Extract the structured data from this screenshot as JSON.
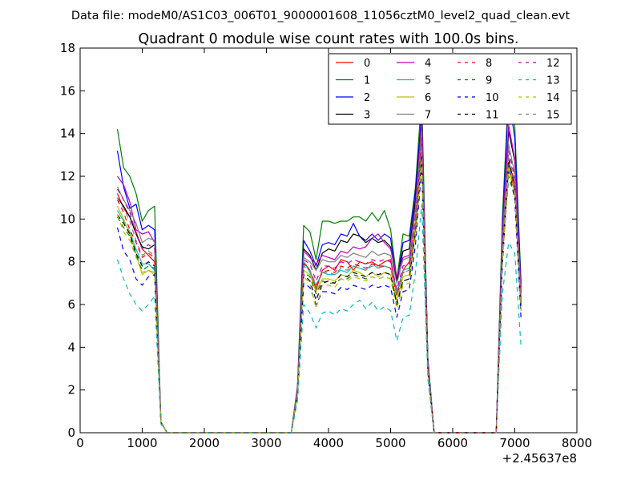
{
  "figure": {
    "suptitle": "Data file: modeM0/AS1C03_006T01_9000001608_11056cztM0_level2_quad_clean.evt"
  },
  "chart_data": {
    "type": "line",
    "title": "Quadrant 0 module wise count rates with 100.0s bins.",
    "xlabel": "",
    "ylabel": "",
    "xlim": [
      0,
      8000
    ],
    "ylim": [
      0,
      18
    ],
    "x_offset_label": "+2.45637e8",
    "x_ticks": [
      0,
      1000,
      2000,
      3000,
      4000,
      5000,
      6000,
      7000,
      8000
    ],
    "y_ticks": [
      0,
      2,
      4,
      6,
      8,
      10,
      12,
      14,
      16,
      18
    ],
    "x_tick_labels": [
      "0",
      "1000",
      "2000",
      "3000",
      "4000",
      "5000",
      "6000",
      "7000",
      "8000"
    ],
    "y_tick_labels": [
      "0",
      "2",
      "4",
      "6",
      "8",
      "10",
      "12",
      "14",
      "16",
      "18"
    ],
    "grid": false,
    "legend_position": "top-right",
    "legend_columns": 4,
    "x": [
      600,
      700,
      800,
      900,
      1000,
      1100,
      1200,
      1300,
      1400,
      1500,
      3400,
      3500,
      3600,
      3700,
      3800,
      3900,
      4000,
      4100,
      4200,
      4300,
      4400,
      4500,
      4600,
      4700,
      4800,
      4900,
      5000,
      5100,
      5200,
      5300,
      5400,
      5500,
      5600,
      5700,
      6700,
      6800,
      6900,
      7000,
      7100
    ],
    "series": [
      {
        "name": "0",
        "color": "#ff0000",
        "dash": "solid",
        "values": [
          11.2,
          10.5,
          10.1,
          9.4,
          8.6,
          8.3,
          8.0,
          0.5,
          0.0,
          0.0,
          0.0,
          2.0,
          8.0,
          7.6,
          6.7,
          7.6,
          7.8,
          7.6,
          8.1,
          8.0,
          7.6,
          8.0,
          7.9,
          8.0,
          7.8,
          8.0,
          8.1,
          6.5,
          7.6,
          8.0,
          10.5,
          13.8,
          3.2,
          0.0,
          0.0,
          8.6,
          12.4,
          11.4,
          6.2
        ]
      },
      {
        "name": "1",
        "color": "#008000",
        "dash": "solid",
        "values": [
          14.2,
          12.4,
          12.0,
          11.2,
          9.9,
          10.4,
          10.6,
          0.5,
          0.0,
          0.0,
          0.0,
          2.2,
          9.7,
          9.4,
          8.1,
          9.9,
          9.9,
          9.8,
          9.9,
          9.9,
          10.1,
          10.1,
          9.9,
          10.3,
          9.9,
          10.4,
          9.5,
          7.2,
          9.3,
          9.2,
          11.5,
          15.8,
          3.5,
          0.0,
          0.0,
          10.1,
          16.1,
          14.3,
          7.0
        ]
      },
      {
        "name": "2",
        "color": "#0000ff",
        "dash": "solid",
        "values": [
          13.2,
          11.5,
          10.5,
          10.7,
          9.5,
          9.7,
          9.5,
          0.5,
          0.0,
          0.0,
          0.0,
          2.1,
          9.0,
          8.5,
          7.8,
          8.8,
          8.9,
          8.8,
          9.3,
          9.2,
          9.8,
          9.2,
          9.0,
          9.3,
          9.0,
          9.3,
          9.1,
          7.0,
          8.9,
          9.0,
          11.3,
          15.0,
          3.4,
          0.0,
          0.0,
          9.6,
          15.7,
          13.8,
          6.8
        ]
      },
      {
        "name": "3",
        "color": "#000000",
        "dash": "solid",
        "values": [
          11.0,
          10.6,
          10.1,
          9.3,
          8.7,
          8.6,
          8.8,
          0.5,
          0.0,
          0.0,
          0.0,
          2.0,
          8.6,
          8.3,
          7.6,
          8.4,
          8.6,
          8.5,
          9.0,
          8.9,
          9.3,
          9.2,
          8.9,
          9.1,
          8.9,
          9.0,
          8.7,
          7.1,
          8.5,
          8.6,
          10.9,
          14.5,
          3.3,
          0.0,
          0.0,
          9.3,
          14.1,
          12.7,
          6.6
        ]
      },
      {
        "name": "4",
        "color": "#bf00bf",
        "dash": "solid",
        "values": [
          12.0,
          11.6,
          10.8,
          9.5,
          9.3,
          9.4,
          8.9,
          0.5,
          0.0,
          0.0,
          0.0,
          2.1,
          8.5,
          8.2,
          7.9,
          8.3,
          8.2,
          8.1,
          8.5,
          8.4,
          8.7,
          8.6,
          8.7,
          9.1,
          9.3,
          8.9,
          8.6,
          7.3,
          8.2,
          8.3,
          10.6,
          14.6,
          3.3,
          0.0,
          0.0,
          9.3,
          14.4,
          12.8,
          6.5
        ]
      },
      {
        "name": "5",
        "color": "#00bfbf",
        "dash": "solid",
        "values": [
          10.4,
          9.9,
          9.4,
          8.6,
          7.9,
          7.9,
          7.6,
          0.5,
          0.0,
          0.0,
          0.0,
          1.9,
          8.0,
          7.5,
          6.9,
          7.5,
          7.4,
          7.4,
          7.6,
          7.5,
          7.8,
          7.7,
          7.6,
          7.9,
          7.7,
          7.8,
          7.7,
          6.6,
          7.6,
          7.7,
          9.8,
          13.5,
          3.1,
          0.0,
          0.0,
          8.6,
          12.6,
          11.6,
          5.9
        ]
      },
      {
        "name": "6",
        "color": "#bfbf00",
        "dash": "solid",
        "values": [
          10.6,
          10.0,
          9.3,
          8.4,
          7.4,
          7.6,
          7.5,
          0.5,
          0.0,
          0.0,
          0.0,
          1.8,
          7.6,
          7.4,
          6.6,
          7.2,
          7.2,
          7.1,
          7.4,
          7.3,
          7.6,
          7.5,
          7.3,
          7.5,
          7.3,
          7.5,
          7.4,
          6.2,
          7.3,
          7.4,
          9.6,
          13.2,
          3.0,
          0.0,
          0.0,
          8.3,
          12.3,
          11.2,
          5.7
        ]
      },
      {
        "name": "7",
        "color": "#808080",
        "dash": "solid",
        "values": [
          11.5,
          10.9,
          10.4,
          9.8,
          8.9,
          9.1,
          9.0,
          0.5,
          0.0,
          0.0,
          0.0,
          2.0,
          8.2,
          8.0,
          7.6,
          8.1,
          8.0,
          8.0,
          8.3,
          8.2,
          8.4,
          8.3,
          8.2,
          8.5,
          8.3,
          8.4,
          8.3,
          7.0,
          8.1,
          8.2,
          10.4,
          14.1,
          3.2,
          0.0,
          0.0,
          9.0,
          13.5,
          12.1,
          6.3
        ]
      },
      {
        "name": "8",
        "color": "#ff0000",
        "dash": "dashed",
        "values": [
          10.9,
          10.3,
          9.5,
          8.9,
          8.2,
          8.4,
          8.2,
          0.5,
          0.0,
          0.0,
          0.0,
          1.9,
          7.9,
          7.6,
          6.9,
          7.5,
          7.6,
          7.5,
          7.8,
          7.7,
          7.9,
          7.8,
          7.7,
          7.9,
          7.8,
          7.8,
          7.7,
          6.4,
          7.5,
          7.6,
          9.9,
          13.6,
          3.1,
          0.0,
          0.0,
          8.6,
          12.7,
          11.7,
          6.0
        ]
      },
      {
        "name": "9",
        "color": "#008000",
        "dash": "dashed",
        "values": [
          10.1,
          9.6,
          9.2,
          8.3,
          7.6,
          7.8,
          7.7,
          0.5,
          0.0,
          0.0,
          0.0,
          1.8,
          7.5,
          7.3,
          6.5,
          7.1,
          7.0,
          7.0,
          7.2,
          7.2,
          7.4,
          7.3,
          7.2,
          7.3,
          7.2,
          7.3,
          7.2,
          6.1,
          7.1,
          7.2,
          9.4,
          12.8,
          3.0,
          0.0,
          0.0,
          8.1,
          12.0,
          11.0,
          5.6
        ]
      },
      {
        "name": "10",
        "color": "#0000ff",
        "dash": "dashed",
        "values": [
          9.6,
          8.5,
          8.1,
          7.2,
          6.9,
          7.3,
          7.4,
          0.5,
          0.0,
          0.0,
          0.0,
          1.7,
          7.0,
          6.8,
          6.0,
          6.6,
          6.6,
          6.5,
          6.8,
          6.7,
          6.9,
          6.8,
          6.7,
          6.9,
          6.8,
          6.9,
          6.8,
          5.4,
          6.6,
          6.7,
          8.8,
          12.4,
          2.8,
          0.0,
          0.0,
          7.8,
          12.5,
          10.9,
          5.3
        ]
      },
      {
        "name": "11",
        "color": "#000000",
        "dash": "dashed",
        "values": [
          10.2,
          9.8,
          9.3,
          8.4,
          7.8,
          8.0,
          7.8,
          0.5,
          0.0,
          0.0,
          0.0,
          1.8,
          7.4,
          7.1,
          6.2,
          7.0,
          7.1,
          7.0,
          7.4,
          7.3,
          7.5,
          7.4,
          7.3,
          7.5,
          7.4,
          7.5,
          7.4,
          6.0,
          7.1,
          7.2,
          9.3,
          12.9,
          3.0,
          0.0,
          0.0,
          8.2,
          12.8,
          11.5,
          5.8
        ]
      },
      {
        "name": "12",
        "color": "#bf00bf",
        "dash": "dashed",
        "values": [
          11.4,
          10.9,
          10.3,
          9.3,
          8.6,
          8.8,
          8.6,
          0.5,
          0.0,
          0.0,
          0.0,
          1.9,
          8.1,
          7.9,
          7.1,
          7.8,
          7.8,
          7.7,
          8.0,
          7.9,
          8.1,
          8.0,
          7.9,
          8.1,
          8.0,
          8.1,
          8.0,
          6.7,
          7.8,
          7.9,
          10.1,
          13.8,
          3.1,
          0.0,
          0.0,
          8.9,
          13.2,
          12.0,
          6.1
        ]
      },
      {
        "name": "13",
        "color": "#00bfbf",
        "dash": "dashed",
        "values": [
          8.1,
          7.2,
          6.5,
          6.0,
          5.7,
          6.0,
          6.4,
          0.4,
          0.0,
          0.0,
          0.0,
          1.5,
          6.0,
          5.6,
          4.9,
          5.6,
          5.7,
          5.5,
          5.8,
          5.7,
          6.0,
          6.2,
          5.8,
          6.1,
          5.7,
          5.9,
          5.7,
          4.3,
          5.4,
          5.5,
          7.5,
          10.7,
          2.5,
          0.0,
          0.0,
          6.5,
          8.9,
          8.4,
          4.0
        ]
      },
      {
        "name": "14",
        "color": "#bfbf00",
        "dash": "dashed",
        "values": [
          10.2,
          9.4,
          9.0,
          8.2,
          7.5,
          7.6,
          7.4,
          0.5,
          0.0,
          0.0,
          0.0,
          1.8,
          7.3,
          7.0,
          5.8,
          6.9,
          6.9,
          6.8,
          7.2,
          7.1,
          7.3,
          7.2,
          7.1,
          7.3,
          7.2,
          7.3,
          7.2,
          5.8,
          6.9,
          7.0,
          9.2,
          12.7,
          2.9,
          0.0,
          0.0,
          8.0,
          12.4,
          11.2,
          5.7
        ]
      },
      {
        "name": "15",
        "color": "#808080",
        "dash": "dashed",
        "values": [
          11.0,
          10.5,
          9.9,
          9.0,
          8.3,
          8.5,
          8.3,
          0.5,
          0.0,
          0.0,
          0.0,
          1.9,
          7.8,
          7.6,
          6.8,
          7.5,
          7.5,
          7.4,
          7.7,
          7.6,
          7.8,
          7.7,
          7.6,
          7.8,
          7.7,
          7.8,
          7.7,
          6.4,
          7.5,
          7.6,
          9.8,
          13.4,
          3.1,
          0.0,
          0.0,
          8.6,
          13.0,
          11.8,
          6.0
        ]
      }
    ]
  }
}
